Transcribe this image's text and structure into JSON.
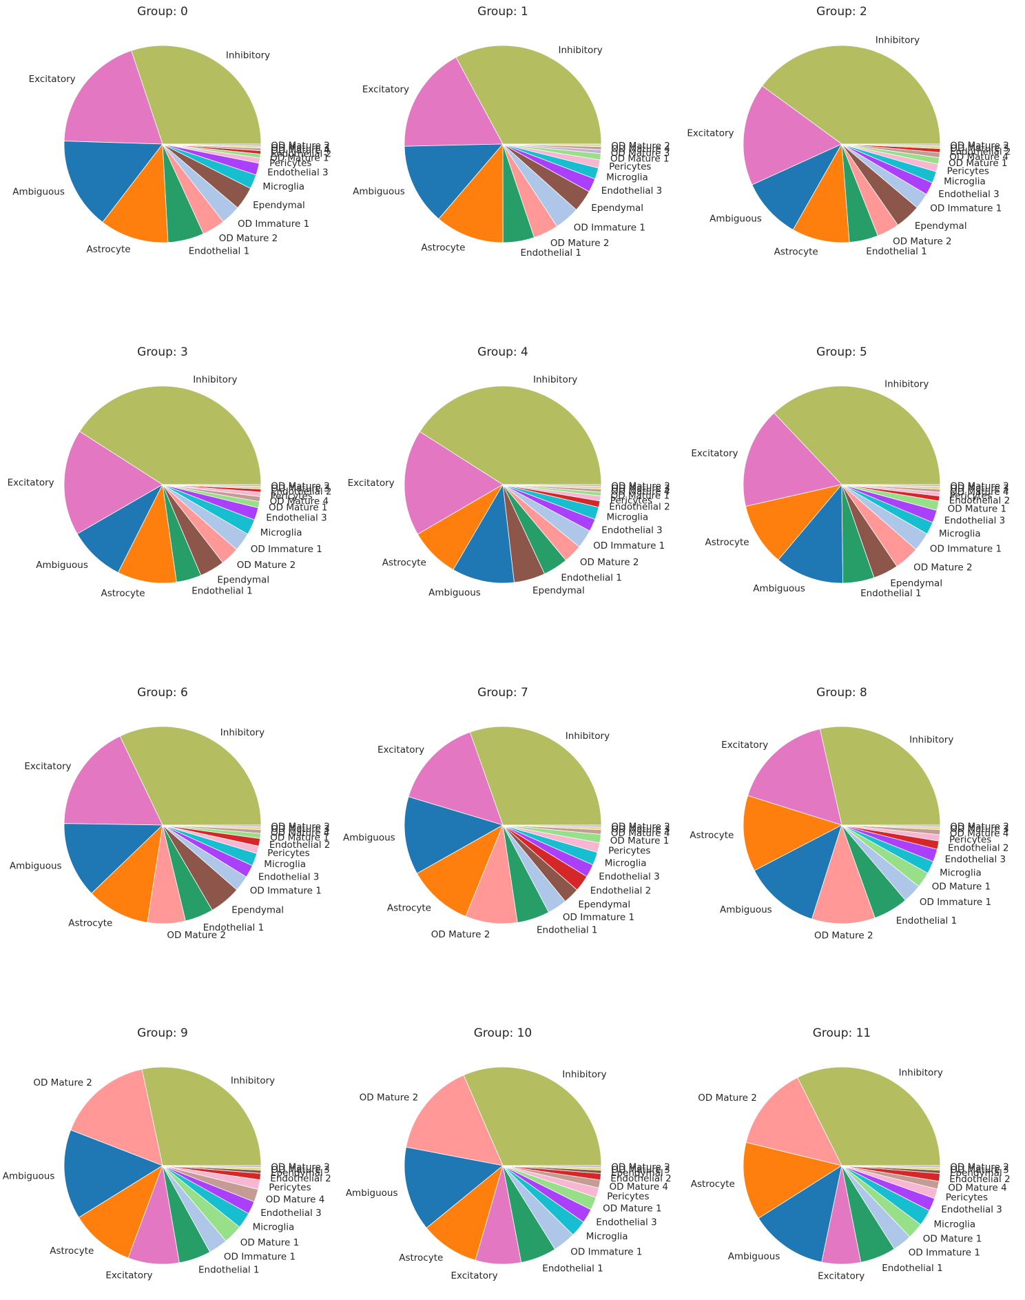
{
  "figure": {
    "background": "#ffffff"
  },
  "chart_data": [
    {
      "type": "pie",
      "title": "Group: 0",
      "start_angle_deg": 0,
      "direction": "counterclockwise",
      "labels": [
        "Inhibitory",
        "Excitatory",
        "Ambiguous",
        "Astrocyte",
        "Endothelial 1",
        "OD Mature 2",
        "OD Immature 1",
        "Ependymal",
        "Microglia",
        "Endothelial 3",
        "Pericytes",
        "OD Mature 1",
        "Endothelial 2",
        "OD Mature 4",
        "OD Mature 3",
        "OD Mature 2"
      ],
      "values": [
        28.0,
        18.0,
        14.0,
        10.5,
        5.5,
        3.5,
        3.0,
        3.5,
        2.2,
        1.8,
        0.8,
        0.6,
        0.5,
        0.4,
        0.3,
        0.3
      ],
      "colors": [
        "#b5bd61",
        "#e377c2",
        "#1f77b4",
        "#ff7f0e",
        "#279e68",
        "#ff9896",
        "#aec7e8",
        "#8c564b",
        "#17becf",
        "#aa40fc",
        "#f7b6d2",
        "#98df8a",
        "#d62728",
        "#c49c94",
        "#dbdb8d",
        "#c5b0d5"
      ]
    },
    {
      "type": "pie",
      "title": "Group: 1",
      "start_angle_deg": 0,
      "direction": "counterclockwise",
      "labels": [
        "Inhibitory",
        "Excitatory",
        "Ambiguous",
        "Astrocyte",
        "Endothelial 1",
        "OD Mature 2",
        "OD Immature 1",
        "Ependymal",
        "Endothelial 3",
        "Microglia",
        "Pericytes",
        "OD Mature 1",
        "OD Mature 3",
        "OD Mature 4",
        "OD Mature 2"
      ],
      "values": [
        32.0,
        17.0,
        13.0,
        11.0,
        5.0,
        4.0,
        4.0,
        3.5,
        2.2,
        1.8,
        1.3,
        1.0,
        0.6,
        0.5,
        0.4
      ],
      "colors": [
        "#b5bd61",
        "#e377c2",
        "#1f77b4",
        "#ff7f0e",
        "#279e68",
        "#ff9896",
        "#aec7e8",
        "#8c564b",
        "#aa40fc",
        "#17becf",
        "#f7b6d2",
        "#98df8a",
        "#c5b0d5",
        "#c49c94",
        "#dbdb8d"
      ]
    },
    {
      "type": "pie",
      "title": "Group: 2",
      "start_angle_deg": 0,
      "direction": "counterclockwise",
      "labels": [
        "Inhibitory",
        "Excitatory",
        "Ambiguous",
        "Astrocyte",
        "Endothelial 1",
        "OD Mature 2",
        "Ependymal",
        "OD Immature 1",
        "Endothelial 3",
        "Microglia",
        "Pericytes",
        "OD Mature 1",
        "OD Mature 4",
        "Endothelial 2",
        "OD Mature 3",
        "OD Mature 2"
      ],
      "values": [
        38.0,
        16.0,
        9.5,
        9.0,
        4.5,
        3.5,
        4.0,
        2.5,
        2.0,
        1.8,
        1.2,
        1.0,
        0.8,
        0.6,
        0.4,
        0.3
      ],
      "colors": [
        "#b5bd61",
        "#e377c2",
        "#1f77b4",
        "#ff7f0e",
        "#279e68",
        "#ff9896",
        "#8c564b",
        "#aec7e8",
        "#aa40fc",
        "#17becf",
        "#f7b6d2",
        "#98df8a",
        "#c49c94",
        "#d62728",
        "#dbdb8d",
        "#c5b0d5"
      ]
    },
    {
      "type": "pie",
      "title": "Group: 3",
      "start_angle_deg": 0,
      "direction": "counterclockwise",
      "labels": [
        "Inhibitory",
        "Excitatory",
        "Ambiguous",
        "Astrocyte",
        "Endothelial 1",
        "Ependymal",
        "OD Mature 2",
        "OD Immature 1",
        "Microglia",
        "Endothelial 3",
        "OD Mature 1",
        "OD Mature 4",
        "Pericytes",
        "Endothelial 2",
        "OD Mature 3",
        "OD Mature 2"
      ],
      "values": [
        40.0,
        17.0,
        9.0,
        9.5,
        4.0,
        4.0,
        3.0,
        3.0,
        2.5,
        2.0,
        1.0,
        0.8,
        0.7,
        0.5,
        0.4,
        0.3
      ],
      "colors": [
        "#b5bd61",
        "#e377c2",
        "#1f77b4",
        "#ff7f0e",
        "#279e68",
        "#8c564b",
        "#ff9896",
        "#aec7e8",
        "#17becf",
        "#aa40fc",
        "#98df8a",
        "#c49c94",
        "#f7b6d2",
        "#d62728",
        "#dbdb8d",
        "#c5b0d5"
      ]
    },
    {
      "type": "pie",
      "title": "Group: 4",
      "start_angle_deg": 0,
      "direction": "counterclockwise",
      "labels": [
        "Inhibitory",
        "Excitatory",
        "Astrocyte",
        "Ambiguous",
        "Ependymal",
        "Endothelial 1",
        "OD Mature 2",
        "OD Immature 1",
        "Endothelial 3",
        "Microglia",
        "Endothelial 2",
        "Pericytes",
        "OD Mature 1",
        "OD Mature 4",
        "OD Mature 3",
        "OD Mature 2"
      ],
      "values": [
        40.0,
        17.0,
        8.0,
        10.0,
        5.0,
        4.0,
        3.0,
        3.0,
        2.0,
        2.0,
        1.0,
        0.8,
        0.6,
        0.5,
        0.4,
        0.3
      ],
      "colors": [
        "#b5bd61",
        "#e377c2",
        "#ff7f0e",
        "#1f77b4",
        "#8c564b",
        "#279e68",
        "#ff9896",
        "#aec7e8",
        "#aa40fc",
        "#17becf",
        "#d62728",
        "#f7b6d2",
        "#98df8a",
        "#c49c94",
        "#dbdb8d",
        "#c5b0d5"
      ]
    },
    {
      "type": "pie",
      "title": "Group: 5",
      "start_angle_deg": 0,
      "direction": "counterclockwise",
      "labels": [
        "Inhibitory",
        "Excitatory",
        "Astrocyte",
        "Ambiguous",
        "Endothelial 1",
        "Ependymal",
        "OD Mature 2",
        "OD Immature 1",
        "Microglia",
        "Endothelial 3",
        "OD Mature 1",
        "Endothelial 2",
        "Pericytes",
        "OD Mature 4",
        "OD Mature 3",
        "OD Mature 2"
      ],
      "values": [
        36.0,
        16.0,
        10.0,
        11.0,
        5.0,
        4.0,
        4.0,
        3.0,
        2.0,
        2.0,
        1.5,
        0.8,
        0.6,
        0.5,
        0.4,
        0.3
      ],
      "colors": [
        "#b5bd61",
        "#e377c2",
        "#ff7f0e",
        "#1f77b4",
        "#279e68",
        "#8c564b",
        "#ff9896",
        "#aec7e8",
        "#17becf",
        "#aa40fc",
        "#98df8a",
        "#d62728",
        "#f7b6d2",
        "#c49c94",
        "#dbdb8d",
        "#c5b0d5"
      ]
    },
    {
      "type": "pie",
      "title": "Group: 6",
      "start_angle_deg": 0,
      "direction": "counterclockwise",
      "labels": [
        "Inhibitory",
        "Excitatory",
        "Ambiguous",
        "Astrocyte",
        "OD Mature 2",
        "Endothelial 1",
        "Ependymal",
        "OD Immature 1",
        "Endothelial 3",
        "Microglia",
        "Pericytes",
        "Endothelial 2",
        "OD Mature 1",
        "OD Mature 4",
        "OD Mature 3",
        "OD Mature 2"
      ],
      "values": [
        31.0,
        17.0,
        12.0,
        10.0,
        6.0,
        4.5,
        5.0,
        2.5,
        2.0,
        2.0,
        1.2,
        1.2,
        0.8,
        0.6,
        0.4,
        0.3
      ],
      "colors": [
        "#b5bd61",
        "#e377c2",
        "#1f77b4",
        "#ff7f0e",
        "#ff9896",
        "#279e68",
        "#8c564b",
        "#aec7e8",
        "#aa40fc",
        "#17becf",
        "#f7b6d2",
        "#d62728",
        "#98df8a",
        "#c49c94",
        "#dbdb8d",
        "#c5b0d5"
      ]
    },
    {
      "type": "pie",
      "title": "Group: 7",
      "start_angle_deg": 0,
      "direction": "counterclockwise",
      "labels": [
        "Inhibitory",
        "Excitatory",
        "Ambiguous",
        "Astrocyte",
        "OD Mature 2",
        "Endothelial 1",
        "OD Immature 1",
        "Ependymal",
        "Endothelial 2",
        "Endothelial 3",
        "Microglia",
        "Pericytes",
        "OD Mature 1",
        "OD Mature 4",
        "OD Mature 3",
        "OD Mature 2"
      ],
      "values": [
        28.5,
        14.0,
        12.0,
        10.0,
        8.0,
        5.0,
        3.0,
        2.5,
        2.5,
        2.0,
        2.0,
        1.5,
        1.3,
        0.7,
        0.4,
        0.3
      ],
      "colors": [
        "#b5bd61",
        "#e377c2",
        "#1f77b4",
        "#ff7f0e",
        "#ff9896",
        "#279e68",
        "#aec7e8",
        "#8c564b",
        "#d62728",
        "#aa40fc",
        "#17becf",
        "#f7b6d2",
        "#98df8a",
        "#c49c94",
        "#dbdb8d",
        "#c5b0d5"
      ]
    },
    {
      "type": "pie",
      "title": "Group: 8",
      "start_angle_deg": 0,
      "direction": "counterclockwise",
      "labels": [
        "Inhibitory",
        "Excitatory",
        "Astrocyte",
        "Ambiguous",
        "OD Mature 2",
        "Endothelial 1",
        "OD Immature 1",
        "OD Mature 1",
        "Microglia",
        "Endothelial 3",
        "Endothelial 2",
        "Pericytes",
        "OD Mature 4",
        "OD Mature 3",
        "OD Mature 2"
      ],
      "values": [
        27.5,
        16.0,
        12.0,
        12.0,
        10.0,
        5.5,
        3.0,
        2.5,
        2.0,
        2.0,
        1.3,
        1.0,
        0.8,
        0.4,
        0.3
      ],
      "colors": [
        "#b5bd61",
        "#e377c2",
        "#ff7f0e",
        "#1f77b4",
        "#ff9896",
        "#279e68",
        "#aec7e8",
        "#98df8a",
        "#17becf",
        "#aa40fc",
        "#d62728",
        "#f7b6d2",
        "#c49c94",
        "#dbdb8d",
        "#c5b0d5"
      ]
    },
    {
      "type": "pie",
      "title": "Group: 9",
      "start_angle_deg": 0,
      "direction": "counterclockwise",
      "labels": [
        "Inhibitory",
        "OD Mature 2",
        "Ambiguous",
        "Astrocyte",
        "Excitatory",
        "Endothelial 1",
        "OD Immature 1",
        "OD Mature 1",
        "Microglia",
        "Endothelial 3",
        "OD Mature 4",
        "Pericytes",
        "Endothelial 2",
        "Ependymal",
        "OD Mature 3",
        "OD Mature 2"
      ],
      "values": [
        27.0,
        15.0,
        14.0,
        10.0,
        8.0,
        5.0,
        3.0,
        3.0,
        2.5,
        2.0,
        2.0,
        1.5,
        1.0,
        0.5,
        0.4,
        0.3
      ],
      "colors": [
        "#b5bd61",
        "#ff9896",
        "#1f77b4",
        "#ff7f0e",
        "#e377c2",
        "#279e68",
        "#aec7e8",
        "#98df8a",
        "#17becf",
        "#aa40fc",
        "#c49c94",
        "#f7b6d2",
        "#d62728",
        "#8c564b",
        "#dbdb8d",
        "#c5b0d5"
      ]
    },
    {
      "type": "pie",
      "title": "Group: 10",
      "start_angle_deg": 0,
      "direction": "counterclockwise",
      "labels": [
        "Inhibitory",
        "OD Mature 2",
        "Ambiguous",
        "Astrocyte",
        "Excitatory",
        "Endothelial 1",
        "OD Immature 1",
        "Microglia",
        "Endothelial 3",
        "OD Mature 1",
        "Pericytes",
        "OD Mature 4",
        "Endothelial 2",
        "Ependymal",
        "OD Mature 3",
        "OD Mature 2"
      ],
      "values": [
        29.5,
        14.5,
        13.0,
        9.0,
        7.0,
        5.5,
        3.5,
        2.5,
        2.2,
        2.0,
        1.5,
        1.2,
        1.0,
        0.5,
        0.4,
        0.3
      ],
      "colors": [
        "#b5bd61",
        "#ff9896",
        "#1f77b4",
        "#ff7f0e",
        "#e377c2",
        "#279e68",
        "#aec7e8",
        "#17becf",
        "#aa40fc",
        "#98df8a",
        "#f7b6d2",
        "#c49c94",
        "#d62728",
        "#8c564b",
        "#dbdb8d",
        "#c5b0d5"
      ]
    },
    {
      "type": "pie",
      "title": "Group: 11",
      "start_angle_deg": 0,
      "direction": "counterclockwise",
      "labels": [
        "Inhibitory",
        "OD Mature 2",
        "Astrocyte",
        "Ambiguous",
        "Excitatory",
        "Endothelial 1",
        "OD Immature 1",
        "OD Mature 1",
        "Microglia",
        "Endothelial 3",
        "Pericytes",
        "OD Mature 4",
        "Endothelial 2",
        "Ependymal",
        "OD Mature 3",
        "OD Mature 2"
      ],
      "values": [
        30.5,
        13.0,
        12.0,
        12.0,
        6.0,
        5.5,
        3.0,
        2.5,
        2.5,
        2.0,
        1.5,
        1.2,
        1.2,
        0.5,
        0.4,
        0.3
      ],
      "colors": [
        "#b5bd61",
        "#ff9896",
        "#ff7f0e",
        "#1f77b4",
        "#e377c2",
        "#279e68",
        "#aec7e8",
        "#98df8a",
        "#17becf",
        "#aa40fc",
        "#f7b6d2",
        "#c49c94",
        "#d62728",
        "#8c564b",
        "#dbdb8d",
        "#c5b0d5"
      ]
    }
  ]
}
